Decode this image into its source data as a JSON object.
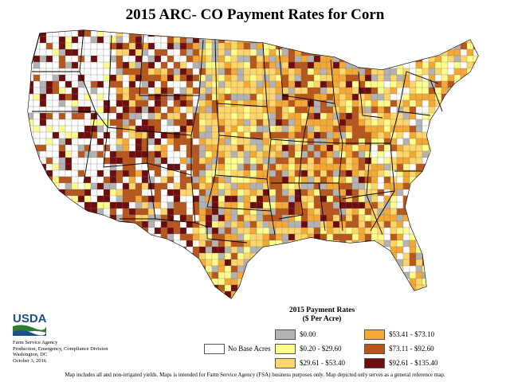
{
  "title": "2015 ARC- CO Payment Rates for Corn",
  "logo": {
    "text": "USDA"
  },
  "agency": {
    "line1": "Farm Service Agency",
    "line2": "Production, Emergency, Compliance Division",
    "line3": "Washington, DC",
    "line4": "October 3, 2016"
  },
  "legend": {
    "title_line1": "2015 Payment Rates",
    "title_line2": "($ Per Acre)",
    "no_base": {
      "label": "No Base Acres",
      "color": "#ffffff"
    },
    "items": [
      {
        "label": "$0.00",
        "color": "#b3b3b3"
      },
      {
        "label": "$0.20 - $29.60",
        "color": "#ffff8c"
      },
      {
        "label": "$29.61 - $53.40",
        "color": "#fed669"
      },
      {
        "label": "$53.41 - $73.10",
        "color": "#f5a935"
      },
      {
        "label": "$73.11 - $92.60",
        "color": "#b8561b"
      },
      {
        "label": "$92.61 - $135.40",
        "color": "#6e0d0d"
      }
    ]
  },
  "footer": "Map includes all and non-irrigated yields. Maps is intended for Farm Service Agency (FSA) business purposes only. Map depicted only serves as a general reference map."
}
